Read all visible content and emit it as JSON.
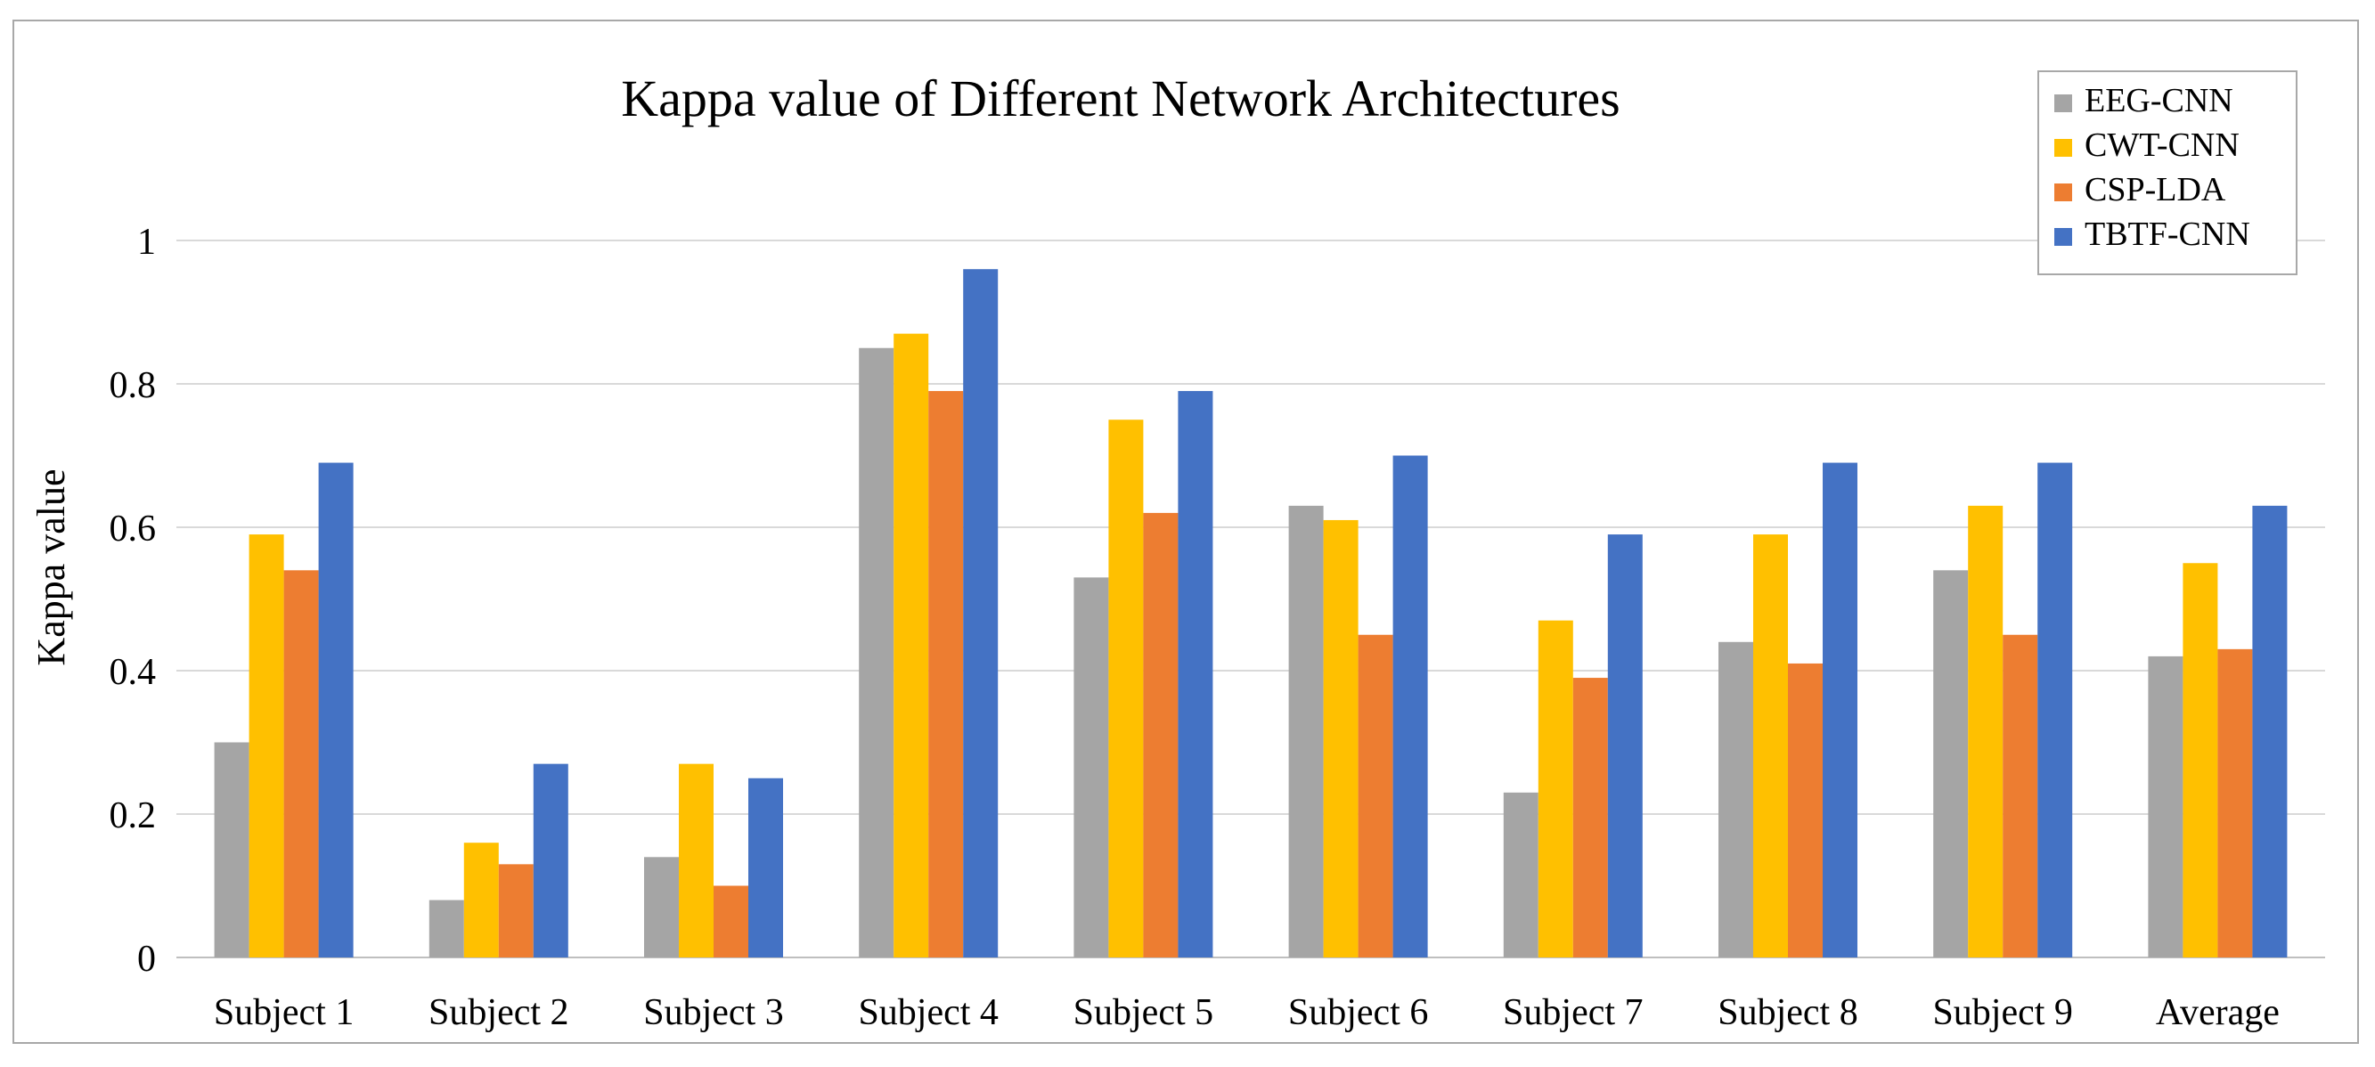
{
  "chart_data": {
    "type": "bar",
    "title": "Kappa value of Different Network Architectures",
    "xlabel": "",
    "ylabel": "Kappa value",
    "ylim": [
      0,
      1
    ],
    "yticks": [
      0,
      0.2,
      0.4,
      0.6,
      0.8,
      1
    ],
    "ytick_labels": [
      "0",
      "0.2",
      "0.4",
      "0.6",
      "0.8",
      "1"
    ],
    "grid": true,
    "legend_position": "top-right",
    "categories": [
      "Subject 1",
      "Subject 2",
      "Subject 3",
      "Subject 4",
      "Subject 5",
      "Subject 6",
      "Subject 7",
      "Subject 8",
      "Subject 9",
      "Average"
    ],
    "series": [
      {
        "name": "EEG-CNN",
        "color": "#a5a5a5",
        "values": [
          0.3,
          0.08,
          0.14,
          0.85,
          0.53,
          0.63,
          0.23,
          0.44,
          0.54,
          0.42
        ]
      },
      {
        "name": "CWT-CNN",
        "color": "#ffc000",
        "values": [
          0.59,
          0.16,
          0.27,
          0.87,
          0.75,
          0.61,
          0.47,
          0.59,
          0.63,
          0.55
        ]
      },
      {
        "name": "CSP-LDA",
        "color": "#ed7d31",
        "values": [
          0.54,
          0.13,
          0.1,
          0.79,
          0.62,
          0.45,
          0.39,
          0.41,
          0.45,
          0.43
        ]
      },
      {
        "name": "TBTF-CNN",
        "color": "#4472c4",
        "values": [
          0.69,
          0.27,
          0.25,
          0.96,
          0.79,
          0.7,
          0.59,
          0.69,
          0.69,
          0.63
        ]
      }
    ]
  }
}
